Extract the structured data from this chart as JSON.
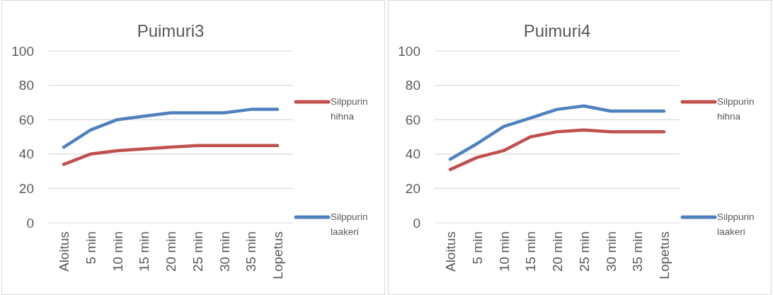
{
  "chart_data": [
    {
      "type": "line",
      "title": "Puimuri3",
      "categories": [
        "Aloitus",
        "5 min",
        "10 min",
        "15 min",
        "20 min",
        "25 min",
        "30 min",
        "35 min",
        "Lopetus"
      ],
      "ylim": [
        0,
        100
      ],
      "yticks": [
        0,
        20,
        40,
        60,
        80,
        100
      ],
      "grid": "y",
      "legend": "right",
      "marker": "none",
      "line_style": "solid",
      "series": [
        {
          "name": "Silppurin hihna",
          "color": "#c0504d",
          "values": [
            34,
            40,
            42,
            43,
            44,
            45,
            45,
            45,
            45
          ]
        },
        {
          "name": "Silppurin laakeri",
          "color": "#4f81bd",
          "values": [
            44,
            54,
            60,
            62,
            64,
            64,
            64,
            66,
            66
          ]
        }
      ]
    },
    {
      "type": "line",
      "title": "Puimuri4",
      "categories": [
        "Aloitus",
        "5 min",
        "10 min",
        "15 min",
        "20 min",
        "25 min",
        "30 min",
        "35 min",
        "Lopetus"
      ],
      "ylim": [
        0,
        100
      ],
      "yticks": [
        0,
        20,
        40,
        60,
        80,
        100
      ],
      "grid": "y",
      "legend": "right",
      "marker": "none",
      "line_style": "solid",
      "series": [
        {
          "name": "Silppurin hihna",
          "color": "#c0504d",
          "values": [
            31,
            38,
            42,
            50,
            53,
            54,
            53,
            53,
            53
          ]
        },
        {
          "name": "Silppurin laakeri",
          "color": "#4f81bd",
          "values": [
            37,
            46,
            56,
            61,
            66,
            68,
            65,
            65,
            65
          ]
        }
      ]
    }
  ]
}
